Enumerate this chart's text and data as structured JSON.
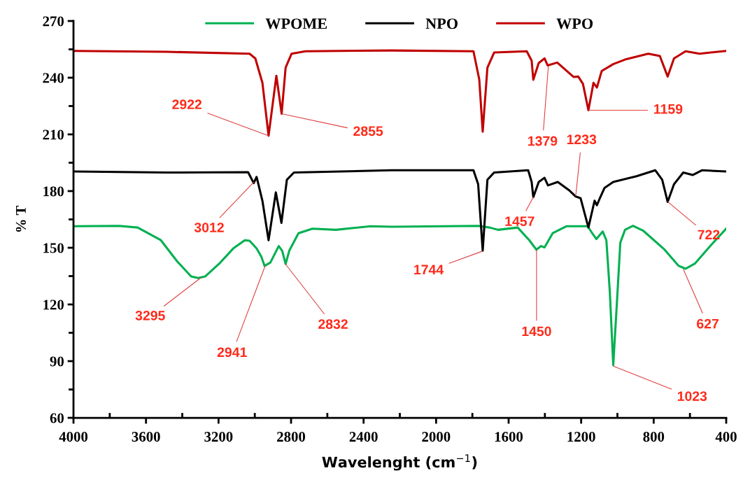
{
  "chart_data": {
    "type": "line",
    "xlabel": "Wavelenght (cm$^{−1}$)",
    "ylabel": "% T",
    "xlim": [
      4000,
      400
    ],
    "xticks": [
      4000,
      3600,
      3200,
      2800,
      2400,
      2000,
      1600,
      1200,
      800,
      400
    ],
    "ylim": [
      60,
      270
    ],
    "yticks": [
      60,
      90,
      120,
      150,
      180,
      210,
      240,
      270
    ],
    "grid": false,
    "legend": "top",
    "marker": "none",
    "line_style": "solid",
    "series": [
      {
        "name": "WPOME",
        "color": "#00b050",
        "x": [
          4000,
          3749,
          3646,
          3518,
          3428,
          3351,
          3312,
          3274,
          3196,
          3119,
          3055,
          3029,
          2990,
          2964,
          2946,
          2914,
          2868,
          2849,
          2830,
          2810,
          2759,
          2682,
          2553,
          2361,
          2245,
          1768,
          1704,
          1659,
          1550,
          1486,
          1447,
          1421,
          1402,
          1357,
          1280,
          1164,
          1139,
          1116,
          1081,
          1061,
          1042,
          1023,
          1003,
          984,
          958,
          914,
          856,
          740,
          662,
          624,
          573,
          483,
          400
        ],
        "values": [
          161.4,
          161.6,
          160.7,
          154,
          142.8,
          134.8,
          134,
          134.8,
          141.6,
          149.6,
          154,
          153.7,
          149.6,
          145.3,
          140.4,
          142.2,
          150.9,
          148.4,
          141.4,
          148.4,
          157.7,
          160.1,
          159.5,
          161.4,
          161.1,
          161.6,
          160.7,
          159.5,
          160.7,
          154,
          149,
          150.9,
          150.2,
          157.7,
          161.4,
          161.4,
          157.7,
          154.6,
          158.6,
          154,
          126.8,
          87.9,
          120.6,
          152.7,
          159.5,
          161.6,
          158.9,
          149,
          140.4,
          138.9,
          141.6,
          151.5,
          160.1
        ]
      },
      {
        "name": "NPO",
        "color": "#000000",
        "x": [
          4000,
          3487,
          3037,
          3006,
          2990,
          2958,
          2924,
          2884,
          2853,
          2823,
          2784,
          2245,
          1794,
          1768,
          1743,
          1717,
          1680,
          1492,
          1473,
          1464,
          1434,
          1402,
          1383,
          1329,
          1267,
          1231,
          1203,
          1160,
          1126,
          1113,
          1097,
          1071,
          1023,
          894,
          791,
          753,
          723,
          688,
          637,
          585,
          534,
          400
        ],
        "values": [
          190.4,
          189.8,
          190,
          184.2,
          187.5,
          174.9,
          154,
          179.3,
          163.2,
          186,
          189.8,
          191,
          191,
          183.6,
          148.5,
          186,
          189.8,
          191,
          184.8,
          176.8,
          184.8,
          187,
          183,
          184.8,
          180.5,
          177.2,
          176.2,
          160.7,
          174.9,
          172.5,
          176.2,
          181.7,
          184.8,
          187.9,
          191,
          186,
          174.3,
          183.6,
          189.8,
          188.5,
          191,
          190.4
        ]
      },
      {
        "name": "WPO",
        "color": "#c00000",
        "x": [
          4000,
          3487,
          3029,
          2997,
          2958,
          2924,
          2881,
          2852,
          2830,
          2797,
          2720,
          2245,
          1794,
          1762,
          1743,
          1717,
          1680,
          1500,
          1473,
          1464,
          1434,
          1402,
          1385,
          1332,
          1242,
          1216,
          1190,
          1160,
          1132,
          1113,
          1087,
          1023,
          958,
          830,
          766,
          723,
          688,
          624,
          547,
          400
        ],
        "values": [
          254.2,
          253.7,
          252.7,
          250.2,
          237.3,
          209.3,
          241,
          220.9,
          245.3,
          252.7,
          254,
          254.4,
          254,
          239.1,
          211.4,
          245.3,
          253.3,
          254,
          249,
          238.9,
          247.8,
          250.2,
          246.5,
          248,
          240.4,
          240.6,
          236.7,
          222.8,
          237.3,
          234.8,
          243.5,
          247.2,
          249.6,
          252.7,
          251.5,
          240.6,
          250.2,
          254,
          252.7,
          254.2
        ]
      }
    ],
    "annotations": [
      {
        "text": "2922",
        "x": 2924,
        "y": 209.3
      },
      {
        "text": "2855",
        "x": 2852,
        "y": 220.9
      },
      {
        "text": "1379",
        "x": 1381,
        "y": 246
      },
      {
        "text": "1159",
        "x": 1160,
        "y": 222.8
      },
      {
        "text": "3012",
        "x": 3005,
        "y": 184.8
      },
      {
        "text": "1233",
        "x": 1230,
        "y": 177.4
      },
      {
        "text": "1457",
        "x": 1464,
        "y": 176.8
      },
      {
        "text": "722",
        "x": 722,
        "y": 174.3
      },
      {
        "text": "3295",
        "x": 3298,
        "y": 134.1
      },
      {
        "text": "2941",
        "x": 2943,
        "y": 140.4
      },
      {
        "text": "2832",
        "x": 2831,
        "y": 141.4
      },
      {
        "text": "1744",
        "x": 1747,
        "y": 148.1
      },
      {
        "text": "1450",
        "x": 1446,
        "y": 148.9
      },
      {
        "text": "1023",
        "x": 1022,
        "y": 87.3
      },
      {
        "text": "627",
        "x": 636,
        "y": 138.5
      }
    ]
  }
}
